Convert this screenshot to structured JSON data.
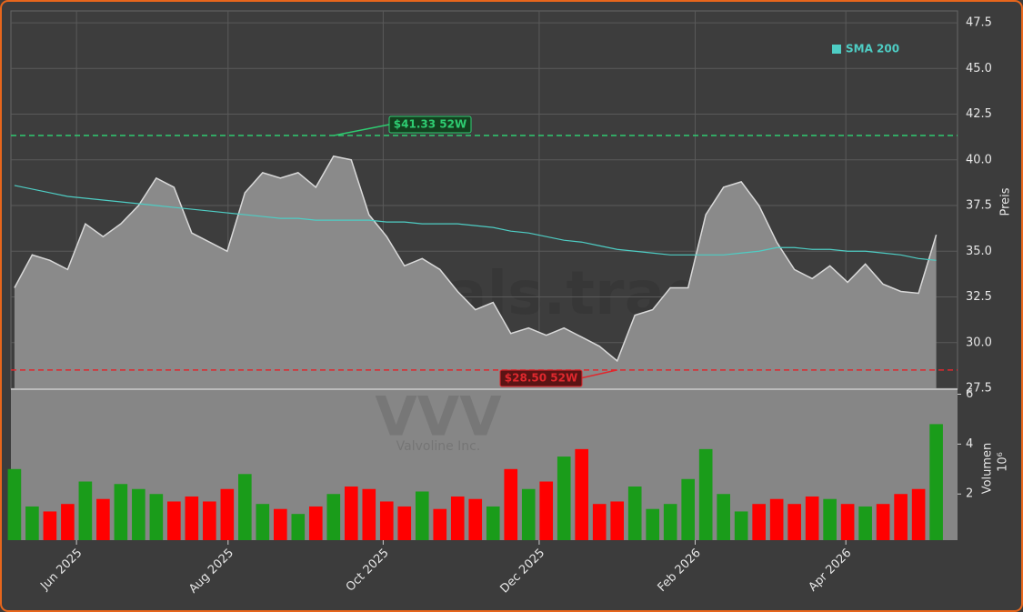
{
  "chart_data": [
    {
      "type": "line",
      "area": true,
      "ylabel": "Preis",
      "watermark": "forexsignals.trade",
      "ticker": "VVV",
      "company": "Valvoline Inc.",
      "xlim": [
        -0.2,
        53.2
      ],
      "ylim": [
        27.45,
        48.15
      ],
      "yticks": [
        27.5,
        {
          "value": 30,
          "label": "30.0"
        },
        32.5,
        {
          "value": 35,
          "label": "35.0"
        },
        37.5,
        {
          "value": 40,
          "label": "40.0"
        },
        42.5,
        {
          "value": 45,
          "label": "45.0"
        },
        47.5
      ],
      "grid": true,
      "series": [
        {
          "name": "Close",
          "color": "#d9d9d9",
          "values": [
            33.0,
            34.8,
            34.5,
            34.0,
            36.5,
            35.8,
            36.5,
            37.5,
            39.0,
            38.5,
            36.0,
            35.5,
            35.0,
            38.2,
            39.3,
            39.0,
            39.3,
            38.5,
            40.2,
            40.0,
            37.0,
            35.8,
            34.2,
            34.6,
            34.0,
            32.8,
            31.8,
            32.2,
            30.5,
            30.8,
            30.4,
            30.8,
            30.3,
            29.8,
            29.0,
            31.5,
            31.8,
            33.0,
            33.0,
            37.0,
            38.5,
            38.8,
            37.5,
            35.5,
            34.0,
            33.5,
            34.2,
            33.3,
            34.3,
            33.2,
            32.8,
            32.7,
            35.9
          ]
        },
        {
          "name": "SMA 200",
          "color": "#4ecdc4",
          "values": [
            38.6,
            38.4,
            38.2,
            38.0,
            37.9,
            37.8,
            37.7,
            37.6,
            37.5,
            37.4,
            37.3,
            37.2,
            37.1,
            37.0,
            36.9,
            36.8,
            36.8,
            36.7,
            36.7,
            36.7,
            36.7,
            36.6,
            36.6,
            36.5,
            36.5,
            36.5,
            36.4,
            36.3,
            36.1,
            36.0,
            35.8,
            35.6,
            35.5,
            35.3,
            35.1,
            35.0,
            34.9,
            34.8,
            34.8,
            34.8,
            34.8,
            34.9,
            35.0,
            35.2,
            35.2,
            35.1,
            35.1,
            35.0,
            35.0,
            34.9,
            34.8,
            34.6,
            34.5
          ]
        }
      ],
      "legend": [
        "SMA 200"
      ],
      "annotations": [
        {
          "value": 41.33,
          "label": "$41.33 52W",
          "color": "#2ecc71"
        },
        {
          "value": 28.5,
          "label": "$28.50 52W",
          "color": "#e0282e"
        }
      ]
    },
    {
      "type": "bar",
      "ylabel": "Volumen",
      "scale_label": "10⁶",
      "xlim": [
        -0.2,
        53.2
      ],
      "ylim": [
        0.15,
        6.2
      ],
      "yticks": [
        2,
        4,
        6
      ],
      "xticks": [
        {
          "value": 3.5,
          "label": "Jun 2025"
        },
        {
          "value": 12.05,
          "label": "Aug 2025"
        },
        {
          "value": 20.8,
          "label": "Oct 2025"
        },
        {
          "value": 29.6,
          "label": "Dec 2025"
        },
        {
          "value": 38.4,
          "label": "Feb 2026"
        },
        {
          "value": 46.9,
          "label": "Apr 2026"
        }
      ],
      "up_color": "#1a9c1a",
      "down_color": "#ff0000",
      "values": [
        3.0,
        1.5,
        1.3,
        1.6,
        2.5,
        1.8,
        2.4,
        2.2,
        2.0,
        1.7,
        1.9,
        1.7,
        2.2,
        2.8,
        1.6,
        1.4,
        1.2,
        1.5,
        2.0,
        2.3,
        2.2,
        1.7,
        1.5,
        2.1,
        1.4,
        1.9,
        1.8,
        1.5,
        3.0,
        2.2,
        2.5,
        3.5,
        3.8,
        1.6,
        1.7,
        2.3,
        1.4,
        1.6,
        2.6,
        3.8,
        2.0,
        1.3,
        1.6,
        1.8,
        1.6,
        1.9,
        1.8,
        1.6,
        1.5,
        1.6,
        2.0,
        2.2,
        4.8
      ]
    }
  ]
}
